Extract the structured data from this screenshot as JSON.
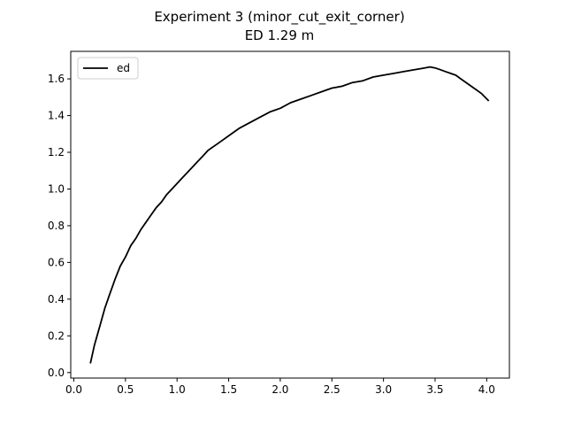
{
  "chart_data": {
    "type": "line",
    "title": "Experiment 3 (minor_cut_exit_corner)",
    "subtitle": "ED 1.29 m",
    "xlabel": "",
    "ylabel": "",
    "xlim": [
      -0.03,
      4.22
    ],
    "ylim": [
      -0.03,
      1.75
    ],
    "x_ticks": [
      0.0,
      0.5,
      1.0,
      1.5,
      2.0,
      2.5,
      3.0,
      3.5,
      4.0
    ],
    "y_ticks": [
      0.0,
      0.2,
      0.4,
      0.6,
      0.8,
      1.0,
      1.2,
      1.4,
      1.6
    ],
    "grid": false,
    "legend": "top-left",
    "series": [
      {
        "name": "ed",
        "color": "#000000",
        "x": [
          0.16,
          0.2,
          0.25,
          0.3,
          0.35,
          0.4,
          0.45,
          0.5,
          0.55,
          0.6,
          0.65,
          0.7,
          0.75,
          0.8,
          0.85,
          0.9,
          0.95,
          1.0,
          1.05,
          1.1,
          1.15,
          1.2,
          1.25,
          1.3,
          1.4,
          1.5,
          1.6,
          1.7,
          1.8,
          1.9,
          2.0,
          2.1,
          2.2,
          2.3,
          2.4,
          2.5,
          2.6,
          2.7,
          2.8,
          2.9,
          3.0,
          3.1,
          3.2,
          3.3,
          3.4,
          3.45,
          3.5,
          3.55,
          3.6,
          3.65,
          3.7,
          3.75,
          3.8,
          3.85,
          3.9,
          3.95,
          4.02
        ],
        "y": [
          0.05,
          0.15,
          0.25,
          0.35,
          0.43,
          0.51,
          0.58,
          0.63,
          0.69,
          0.73,
          0.78,
          0.82,
          0.86,
          0.9,
          0.93,
          0.97,
          1.0,
          1.03,
          1.06,
          1.09,
          1.12,
          1.15,
          1.18,
          1.21,
          1.25,
          1.29,
          1.33,
          1.36,
          1.39,
          1.42,
          1.44,
          1.47,
          1.49,
          1.51,
          1.53,
          1.55,
          1.56,
          1.58,
          1.59,
          1.61,
          1.62,
          1.63,
          1.64,
          1.65,
          1.66,
          1.665,
          1.66,
          1.65,
          1.64,
          1.63,
          1.62,
          1.6,
          1.58,
          1.56,
          1.54,
          1.52,
          1.48
        ]
      }
    ]
  }
}
